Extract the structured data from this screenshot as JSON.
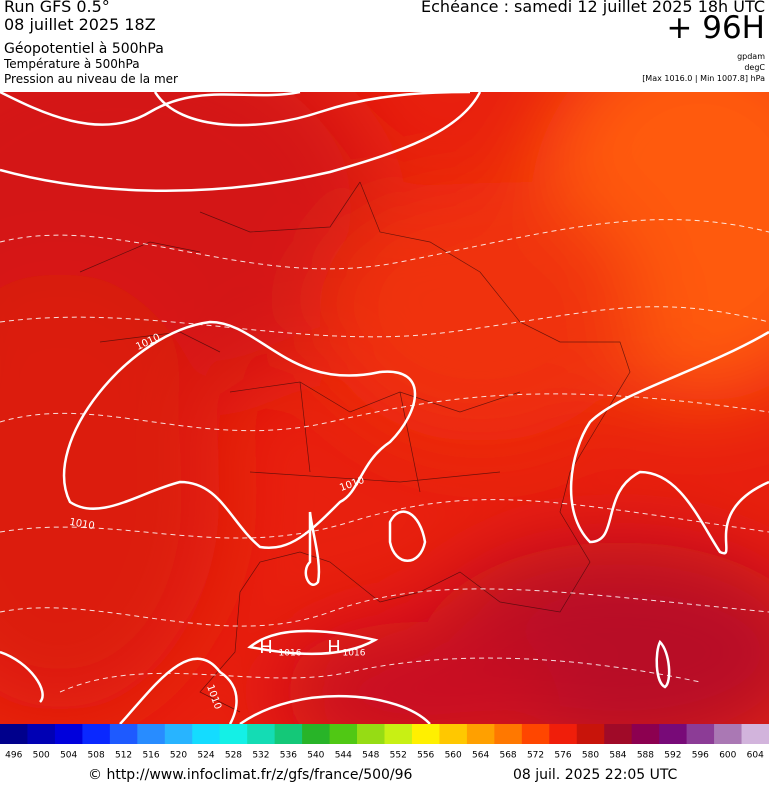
{
  "header": {
    "run": "Run GFS 0.5°",
    "date": "08 juillet 2025 18Z",
    "field1": "Géopotentiel à 500hPa",
    "field2": "Température à 500hPa",
    "field3": "Pression au niveau de la mer",
    "echeance": "Echéance : samedi 12 juillet 2025 18h UTC",
    "lead": "+ 96H",
    "unit1": "gpdam",
    "unit2": "degC",
    "range": "[Max 1016.0 | Min 1007.8] hPa"
  },
  "map": {
    "contour_labels": [
      "1010",
      "1010",
      "1010",
      "1010",
      "H",
      "1016",
      "H",
      "1016"
    ]
  },
  "colorbar": {
    "labels": [
      496,
      500,
      504,
      508,
      512,
      516,
      520,
      524,
      528,
      532,
      536,
      540,
      544,
      548,
      552,
      556,
      560,
      564,
      568,
      572,
      576,
      580,
      584,
      588,
      592,
      596,
      600,
      604
    ],
    "colors": [
      "#00008c",
      "#0000b4",
      "#0000dc",
      "#0a28ff",
      "#1e5aff",
      "#288cff",
      "#28b4ff",
      "#14dcff",
      "#14f0e6",
      "#14dcb4",
      "#14c878",
      "#28b428",
      "#50c814",
      "#96dc14",
      "#c8f014",
      "#fff000",
      "#ffc800",
      "#ffa000",
      "#ff7800",
      "#ff4600",
      "#f01e0a",
      "#c8140a",
      "#a00a28",
      "#8c0050",
      "#780a78",
      "#8c3c96",
      "#aa78b4",
      "#d2b4dc"
    ]
  },
  "footer": {
    "url": "© http://www.infoclimat.fr/z/gfs/france/500/96",
    "stamp": "08 juil. 2025 22:05 UTC"
  }
}
